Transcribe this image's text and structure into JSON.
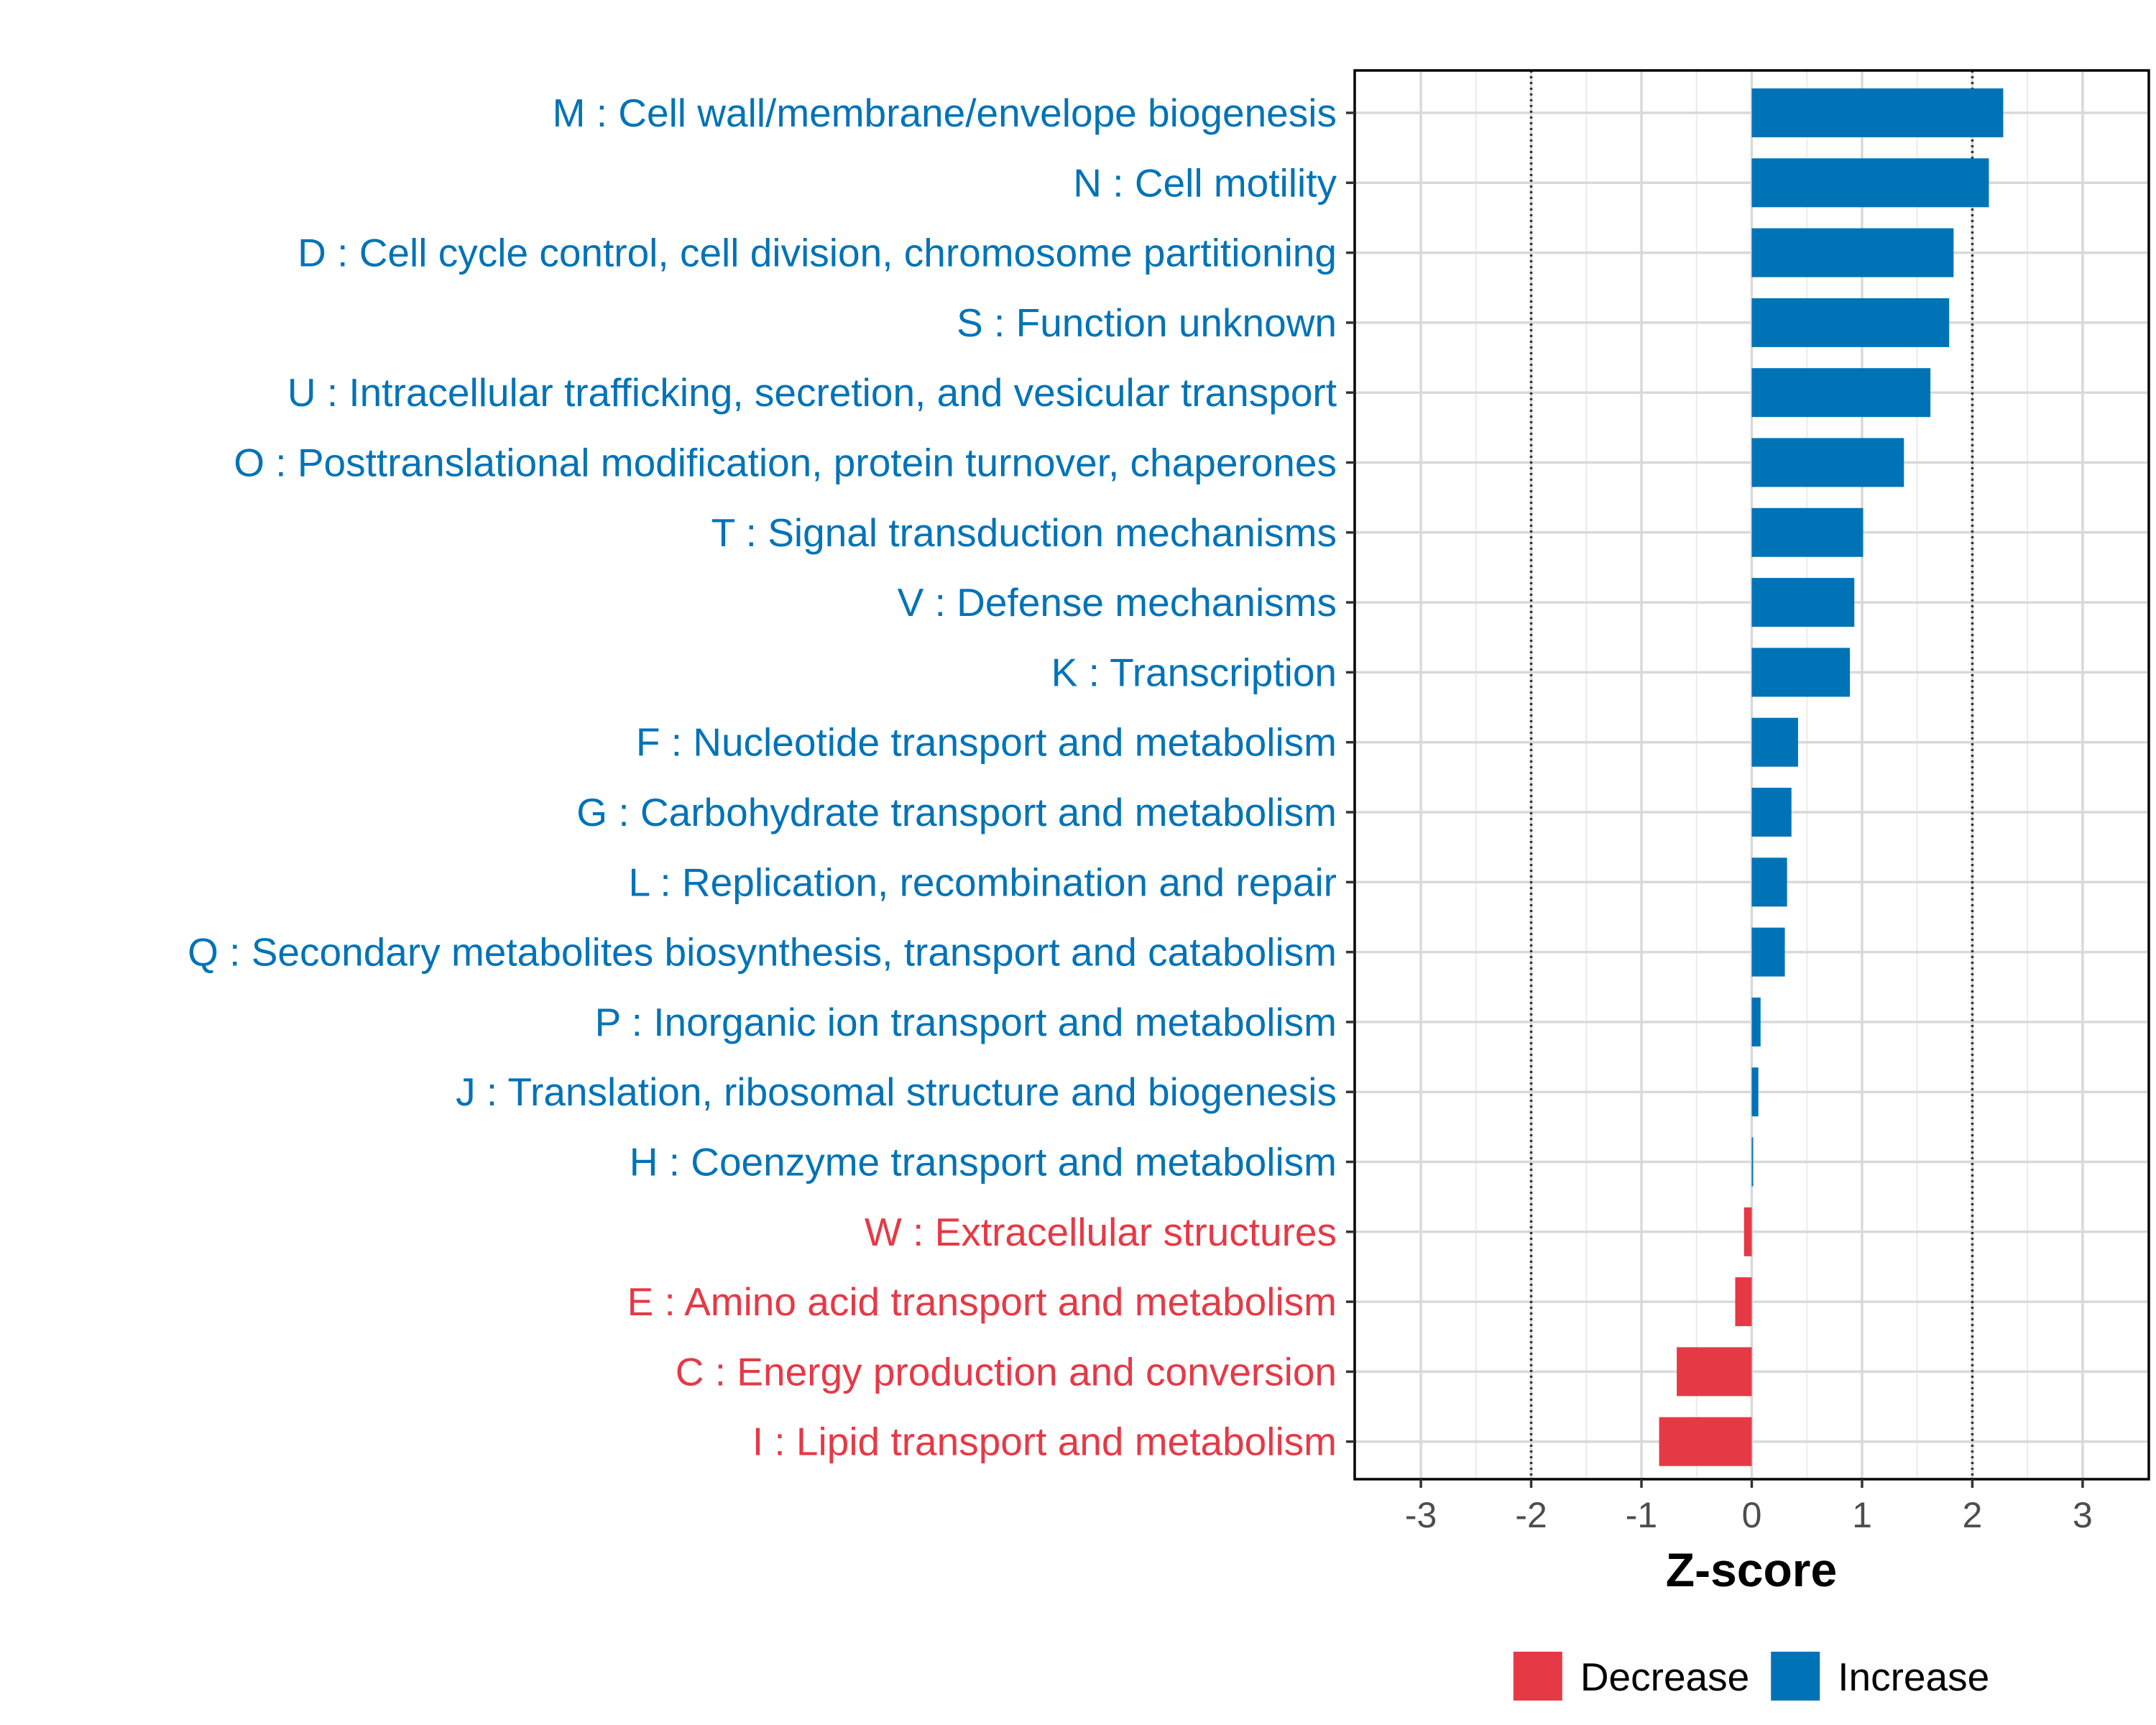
{
  "chart_data": {
    "type": "bar",
    "orientation": "horizontal",
    "title": "",
    "xlabel": "Z-score",
    "ylabel": "",
    "xlim": [
      -3.6,
      3.6
    ],
    "xticks": [
      -3,
      -2,
      -1,
      0,
      1,
      2,
      3
    ],
    "xtick_labels": [
      "-3",
      "-2",
      "-1",
      "0",
      "1",
      "2",
      "3"
    ],
    "threshold_lines": [
      -2,
      2
    ],
    "grid": true,
    "categories": [
      "M : Cell wall/membrane/envelope biogenesis",
      "N : Cell motility",
      "D : Cell cycle control, cell division, chromosome partitioning",
      "S : Function unknown",
      "U : Intracellular trafficking, secretion, and vesicular transport",
      "O : Posttranslational modification, protein turnover, chaperones",
      "T : Signal transduction mechanisms",
      "V : Defense mechanisms",
      "K : Transcription",
      "F : Nucleotide transport and metabolism",
      "G : Carbohydrate transport and metabolism",
      "L : Replication, recombination and repair",
      "Q : Secondary metabolites biosynthesis, transport and catabolism",
      "P : Inorganic ion transport and metabolism",
      "J : Translation, ribosomal structure and biogenesis",
      "H : Coenzyme transport and metabolism",
      "W : Extracellular structures",
      "E : Amino acid transport and metabolism",
      "C : Energy production and conversion",
      "I : Lipid transport and metabolism"
    ],
    "values": [
      2.28,
      2.15,
      1.83,
      1.79,
      1.62,
      1.38,
      1.01,
      0.93,
      0.89,
      0.42,
      0.36,
      0.32,
      0.3,
      0.08,
      0.06,
      0.01,
      -0.07,
      -0.15,
      -0.68,
      -0.84
    ],
    "groups": [
      "Increase",
      "Increase",
      "Increase",
      "Increase",
      "Increase",
      "Increase",
      "Increase",
      "Increase",
      "Increase",
      "Increase",
      "Increase",
      "Increase",
      "Increase",
      "Increase",
      "Increase",
      "Increase",
      "Decrease",
      "Decrease",
      "Decrease",
      "Decrease"
    ],
    "legend": {
      "position": "bottom",
      "entries": [
        {
          "label": "Decrease",
          "color": "#E63946"
        },
        {
          "label": "Increase",
          "color": "#0073B7"
        }
      ]
    },
    "colors": {
      "Decrease": "#E63946",
      "Increase": "#0073B7"
    }
  }
}
